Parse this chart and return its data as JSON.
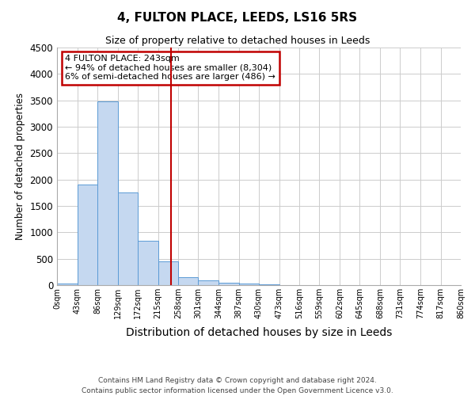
{
  "title": "4, FULTON PLACE, LEEDS, LS16 5RS",
  "subtitle": "Size of property relative to detached houses in Leeds",
  "xlabel": "Distribution of detached houses by size in Leeds",
  "ylabel": "Number of detached properties",
  "footnote1": "Contains HM Land Registry data © Crown copyright and database right 2024.",
  "footnote2": "Contains public sector information licensed under the Open Government Licence v3.0.",
  "annotation_line1": "4 FULTON PLACE: 243sqm",
  "annotation_line2": "← 94% of detached houses are smaller (8,304)",
  "annotation_line3": "6% of semi-detached houses are larger (486) →",
  "property_size": 243,
  "bar_edges": [
    0,
    43,
    86,
    129,
    172,
    215,
    258,
    301,
    344,
    387,
    430,
    473,
    516,
    559,
    602,
    645,
    688,
    731,
    774,
    817,
    860
  ],
  "bar_heights": [
    30,
    1900,
    3480,
    1760,
    840,
    450,
    155,
    95,
    50,
    35,
    15,
    5,
    0,
    0,
    0,
    0,
    0,
    0,
    0,
    0
  ],
  "bar_color": "#c5d8f0",
  "bar_edge_color": "#5b9bd5",
  "vline_color": "#c00000",
  "vline_x": 243,
  "annotation_box_color": "#c00000",
  "annotation_bg": "white",
  "ylim": [
    0,
    4500
  ],
  "yticks": [
    0,
    500,
    1000,
    1500,
    2000,
    2500,
    3000,
    3500,
    4000,
    4500
  ],
  "tick_labels": [
    "0sqm",
    "43sqm",
    "86sqm",
    "129sqm",
    "172sqm",
    "215sqm",
    "258sqm",
    "301sqm",
    "344sqm",
    "387sqm",
    "430sqm",
    "473sqm",
    "516sqm",
    "559sqm",
    "602sqm",
    "645sqm",
    "688sqm",
    "731sqm",
    "774sqm",
    "817sqm",
    "860sqm"
  ],
  "grid_color": "#cccccc",
  "background_color": "#ffffff",
  "title_fontsize": 11,
  "subtitle_fontsize": 9,
  "xlabel_fontsize": 10,
  "ylabel_fontsize": 8.5,
  "ytick_fontsize": 8.5,
  "xtick_fontsize": 7,
  "footnote_fontsize": 6.5,
  "annotation_fontsize": 8
}
